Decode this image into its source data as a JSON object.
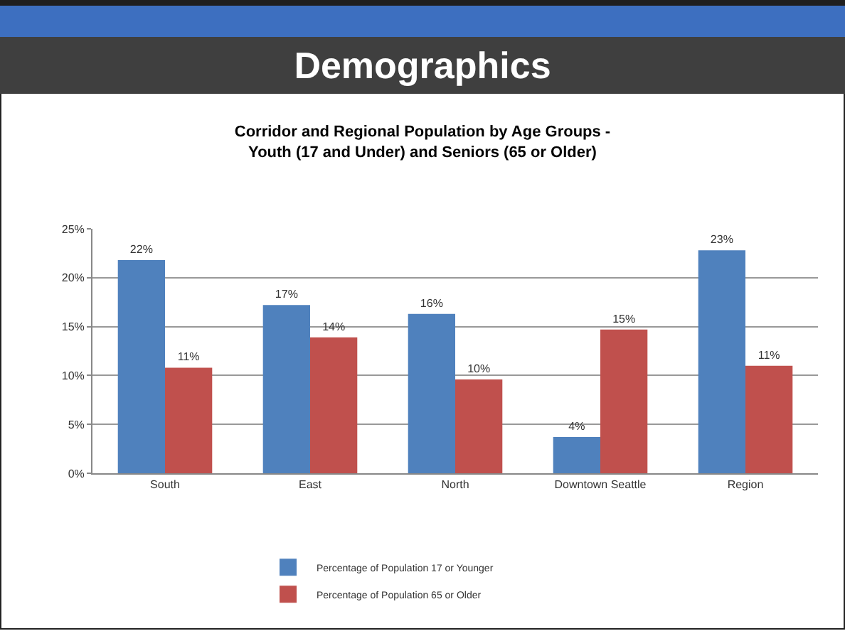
{
  "chart_data": {
    "type": "bar",
    "title": "Demographics",
    "subtitle": "Corridor and Regional Population by Age Groups -\nYouth (17 and Under) and Seniors (65 or Older)",
    "categories": [
      "South",
      "East",
      "North",
      "Downtown Seattle",
      "Region"
    ],
    "series": [
      {
        "name": "Percentage of Population 17 or Younger",
        "color": "#4f81bd",
        "values": [
          21.8,
          17.2,
          16.3,
          3.7,
          22.8
        ],
        "value_labels": [
          "22%",
          "17%",
          "16%",
          "4%",
          "23%"
        ]
      },
      {
        "name": "Percentage of Population 65 or Older",
        "color": "#c0504d",
        "values": [
          10.8,
          13.9,
          9.6,
          14.7,
          11.0
        ],
        "value_labels": [
          "11%",
          "14%",
          "10%",
          "15%",
          "11%"
        ]
      }
    ],
    "ylim": [
      0,
      25
    ],
    "yticks": [
      {
        "value": 0,
        "label": "0%"
      },
      {
        "value": 5,
        "label": "5%"
      },
      {
        "value": 10,
        "label": "10%"
      },
      {
        "value": 15,
        "label": "15%"
      },
      {
        "value": 20,
        "label": "20%"
      },
      {
        "value": 25,
        "label": "25%"
      }
    ],
    "grid": "y",
    "legend": "bottom"
  }
}
